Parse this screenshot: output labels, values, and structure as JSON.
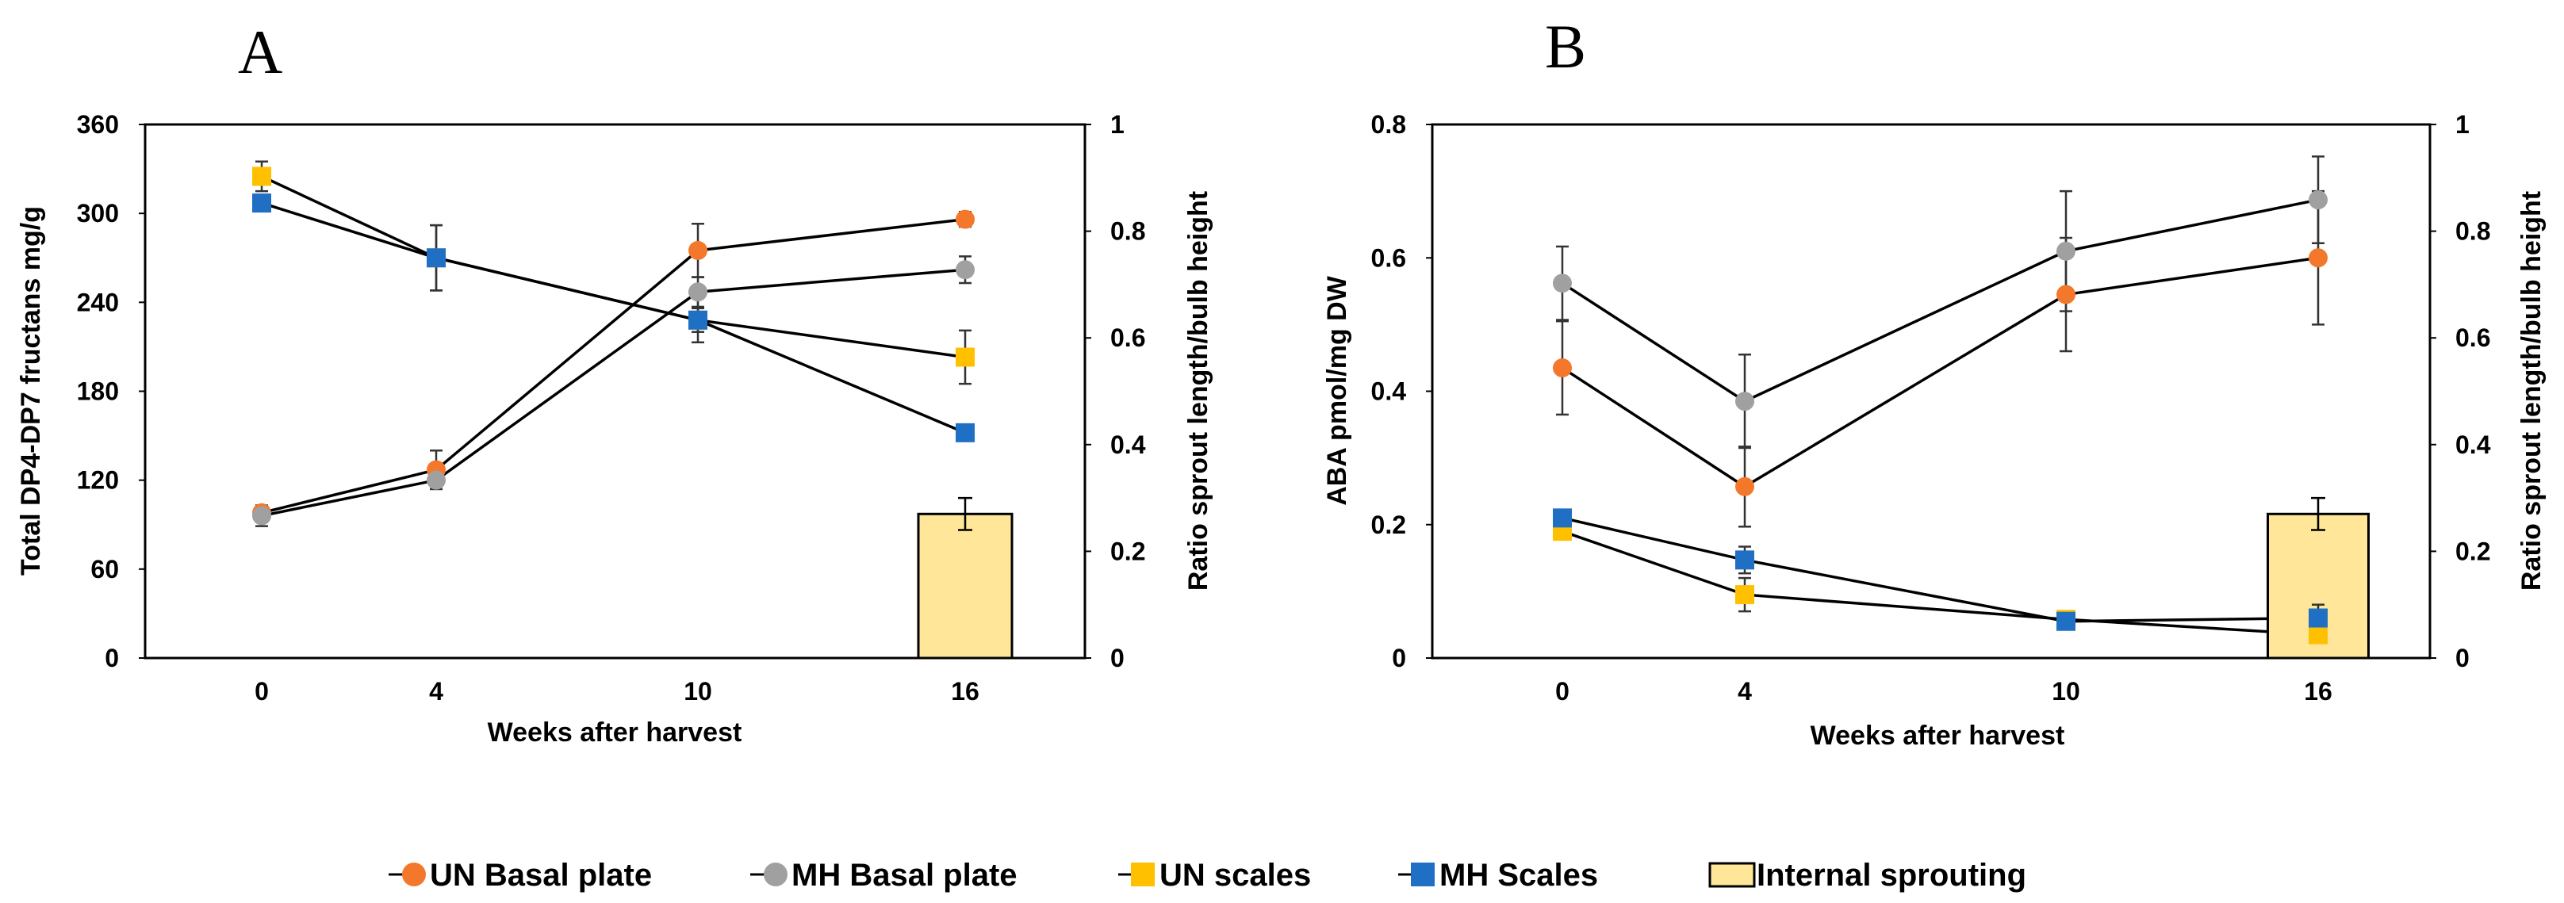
{
  "colors": {
    "un_basal": "#F4782B",
    "mh_basal": "#A0A0A0",
    "un_scales": "#FFC000",
    "mh_scales": "#1F6FC5",
    "bar_fill": "#FFE699",
    "line": "#000000"
  },
  "legend": [
    {
      "label": "UN Basal plate",
      "series": "un_basal",
      "marker": "circle"
    },
    {
      "label": "MH Basal plate",
      "series": "mh_basal",
      "marker": "circle"
    },
    {
      "label": "UN scales",
      "series": "un_scales",
      "marker": "square"
    },
    {
      "label": "MH Scales",
      "series": "mh_scales",
      "marker": "square"
    },
    {
      "label": "Internal sprouting",
      "series": "bar",
      "marker": "bar"
    }
  ],
  "chart_data": [
    {
      "panel": "A",
      "type": "line",
      "categories": [
        "0",
        "4",
        "10",
        "16"
      ],
      "xlabel": "Weeks after harvest",
      "ylabel": "Total DP4-DP7 fructans mg/g",
      "ylim": [
        0,
        360
      ],
      "yticks": [
        "0",
        "60",
        "120",
        "180",
        "240",
        "300",
        "360"
      ],
      "y2label": "Ratio sprout length/bulb height",
      "y2lim": [
        0,
        1
      ],
      "y2ticks": [
        "0",
        "0.2",
        "0.4",
        "0.6",
        "0.8",
        "1"
      ],
      "series": [
        {
          "key": "un_basal",
          "name": "UN Basal plate",
          "marker": "circle",
          "values": [
            98,
            127,
            275,
            296
          ],
          "errors": [
            4,
            13,
            18,
            5
          ]
        },
        {
          "key": "mh_basal",
          "name": "MH Basal plate",
          "marker": "circle",
          "values": [
            96,
            120,
            247,
            262
          ],
          "errors": [
            7,
            6,
            10,
            9
          ]
        },
        {
          "key": "un_scales",
          "name": "UN scales",
          "marker": "square",
          "values": [
            325,
            270,
            228,
            203
          ],
          "errors": [
            10,
            22,
            15,
            18
          ]
        },
        {
          "key": "mh_scales",
          "name": "MH Scales",
          "marker": "square",
          "values": [
            307,
            270,
            228,
            152
          ],
          "errors": [
            3,
            22,
            8,
            3
          ]
        }
      ],
      "bar": {
        "name": "Internal sprouting",
        "axis": "secondary",
        "category": "16",
        "value": 0.27,
        "error": 0.03
      }
    },
    {
      "panel": "B",
      "type": "line",
      "categories": [
        "0",
        "4",
        "10",
        "16"
      ],
      "xlabel": "Weeks after harvest",
      "ylabel": "ABA pmol/mg DW",
      "ylim": [
        0,
        0.8
      ],
      "yticks": [
        "0",
        "0.2",
        "0.4",
        "0.6",
        "0.8"
      ],
      "y2label": "Ratio sprout length/bulb height",
      "y2lim": [
        0,
        1
      ],
      "y2ticks": [
        "0",
        "0.2",
        "0.4",
        "0.6",
        "0.8",
        "1"
      ],
      "series": [
        {
          "key": "un_basal",
          "name": "UN Basal plate",
          "marker": "circle",
          "values": [
            0.435,
            0.257,
            0.545,
            0.6
          ],
          "errors": [
            0.07,
            0.06,
            0.085,
            0.1
          ]
        },
        {
          "key": "mh_basal",
          "name": "MH Basal plate",
          "marker": "circle",
          "values": [
            0.562,
            0.385,
            0.61,
            0.687
          ],
          "errors": [
            0.055,
            0.07,
            0.09,
            0.065
          ]
        },
        {
          "key": "un_scales",
          "name": "UN scales",
          "marker": "square",
          "values": [
            0.19,
            0.095,
            0.058,
            0.035
          ],
          "errors": [
            0.01,
            0.025,
            0.01,
            0.01
          ]
        },
        {
          "key": "mh_scales",
          "name": "MH Scales",
          "marker": "square",
          "values": [
            0.21,
            0.147,
            0.055,
            0.06
          ],
          "errors": [
            0.01,
            0.02,
            0.01,
            0.02
          ]
        }
      ],
      "bar": {
        "name": "Internal sprouting",
        "axis": "secondary",
        "category": "16",
        "value": 0.27,
        "error": 0.03
      }
    }
  ]
}
